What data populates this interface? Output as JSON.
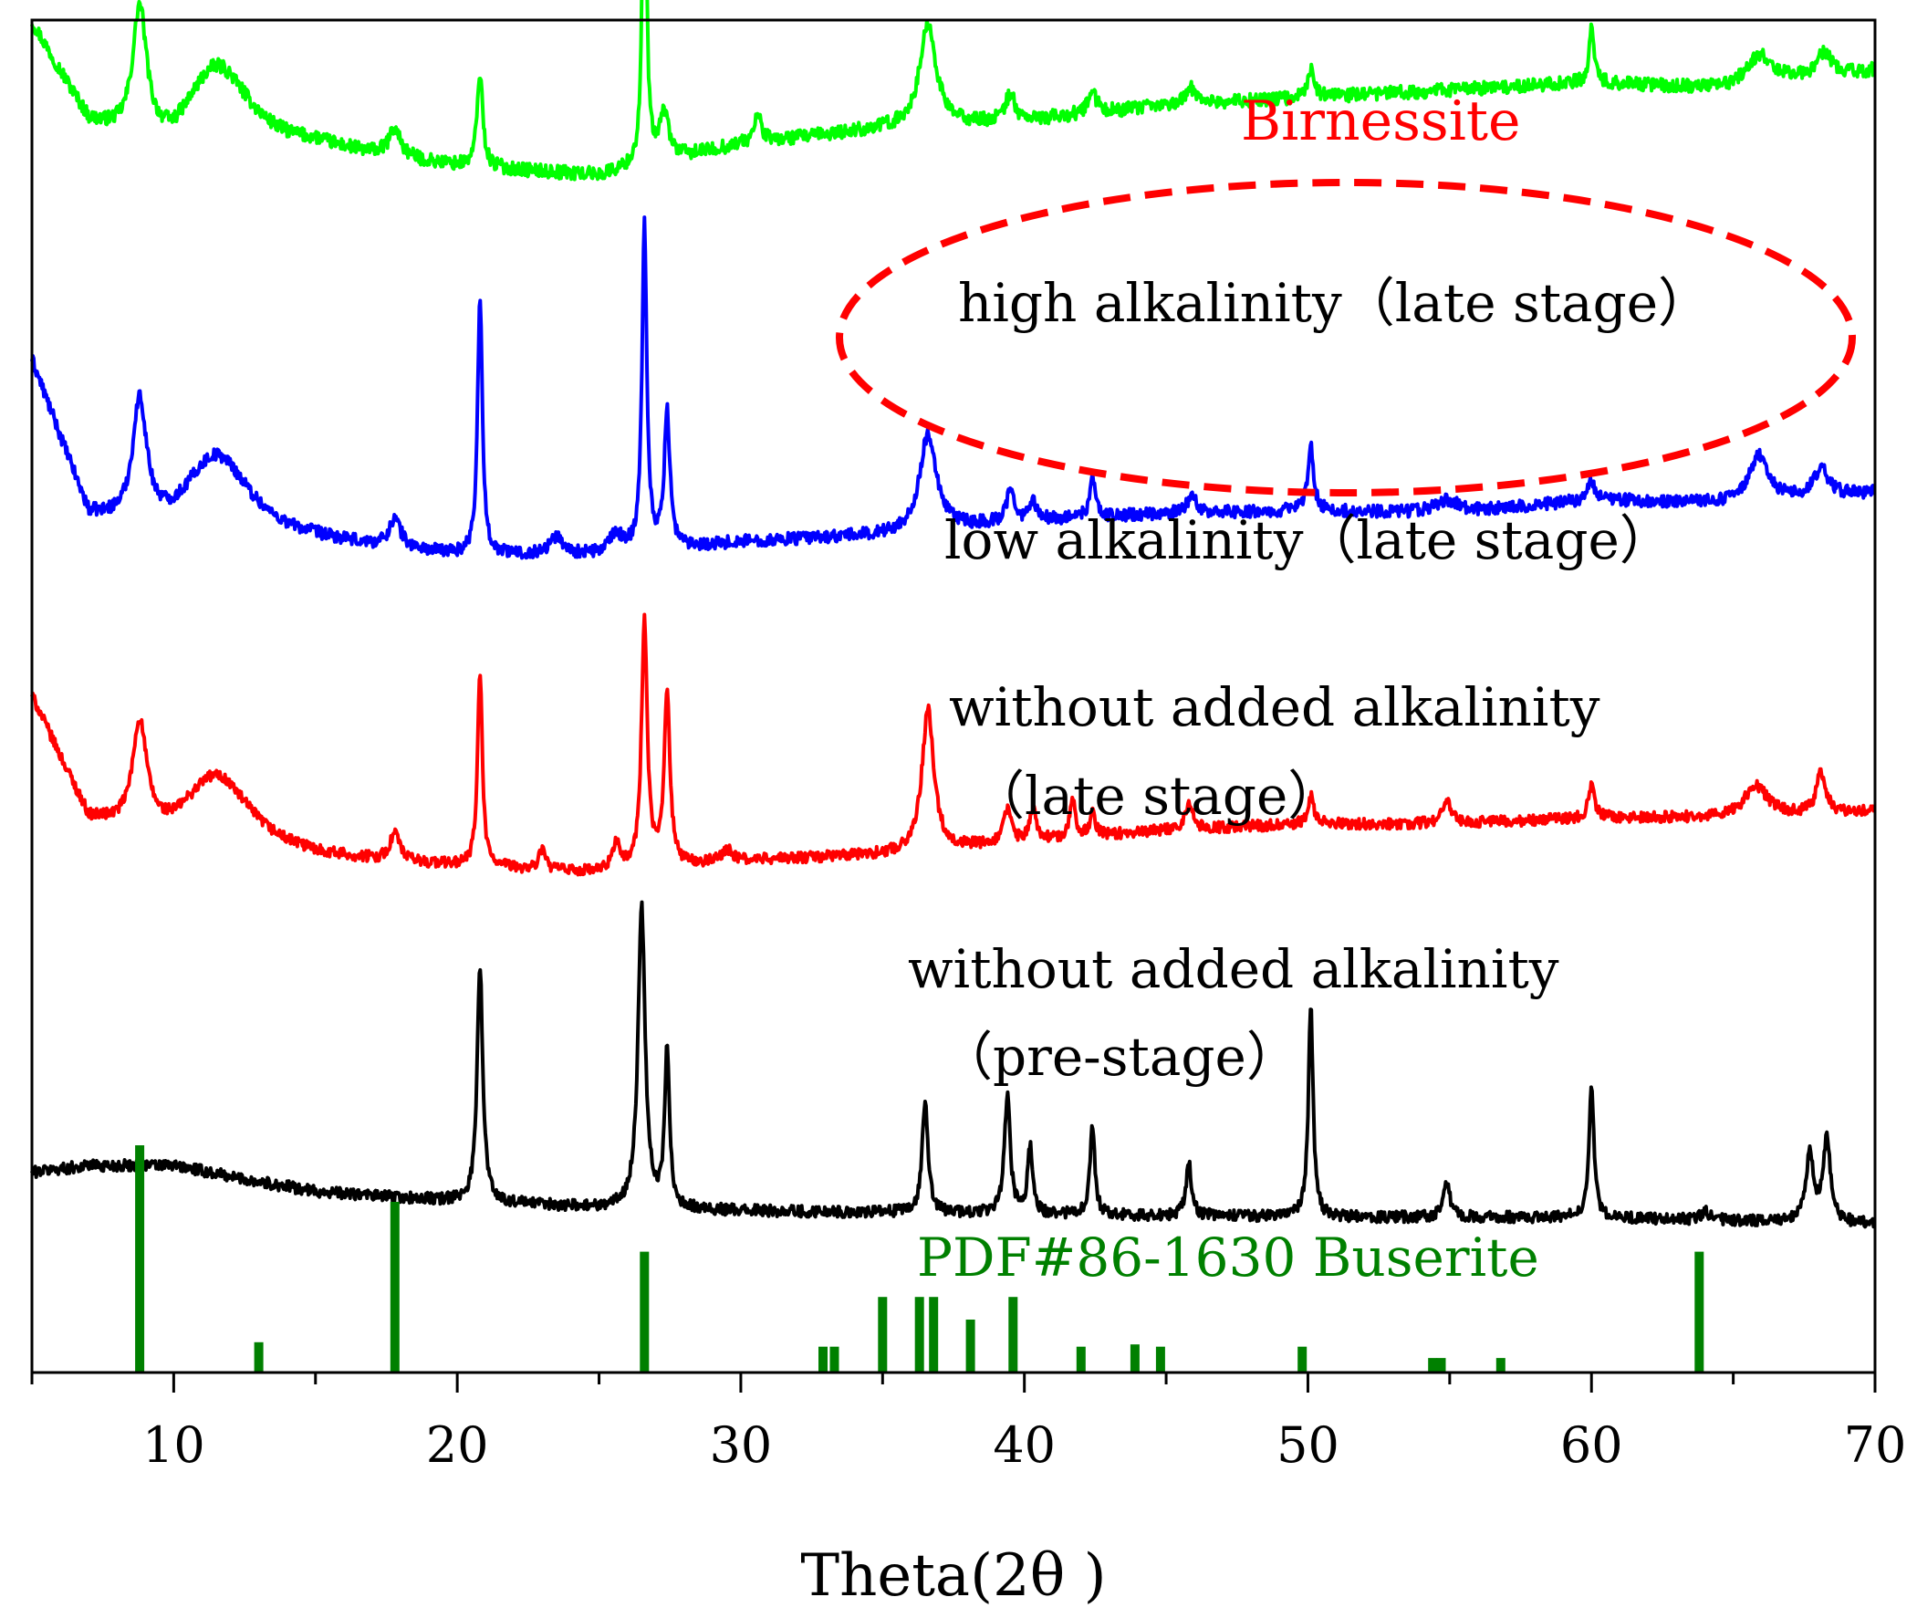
{
  "chart_data": {
    "type": "line",
    "title": "",
    "xlabel": "Theta(2θ )",
    "ylabel": "",
    "xlim": [
      5,
      70
    ],
    "x_ticks": [
      10,
      20,
      30,
      40,
      50,
      60,
      70
    ],
    "grid": false,
    "y_scale": "arbitrary intensity, stacked offsets",
    "series": [
      {
        "name": "high alkalinity（late stage）",
        "color": "#00ff00",
        "baseline": [
          [
            5,
            1.0
          ],
          [
            7,
            0.74
          ],
          [
            10,
            0.62
          ],
          [
            15,
            0.68
          ],
          [
            20,
            0.64
          ],
          [
            25,
            0.62
          ],
          [
            30,
            0.7
          ],
          [
            35,
            0.74
          ],
          [
            40,
            0.76
          ],
          [
            45,
            0.8
          ],
          [
            50,
            0.82
          ],
          [
            55,
            0.84
          ],
          [
            60,
            0.86
          ],
          [
            65,
            0.84
          ],
          [
            70,
            0.89
          ]
        ],
        "peaks": [
          [
            8.8,
            0.33,
            0.3
          ],
          [
            11.5,
            0.26,
            1.5
          ],
          [
            17.8,
            0.07,
            0.25
          ],
          [
            20.8,
            0.24,
            0.12
          ],
          [
            26.6,
            1.0,
            0.08
          ],
          [
            27.3,
            0.12,
            0.2
          ],
          [
            30.6,
            0.07,
            0.15
          ],
          [
            36.6,
            0.26,
            0.35
          ],
          [
            39.5,
            0.07,
            0.2
          ],
          [
            42.4,
            0.05,
            0.2
          ],
          [
            45.9,
            0.04,
            0.25
          ],
          [
            50.1,
            0.07,
            0.15
          ],
          [
            60.0,
            0.14,
            0.1
          ],
          [
            65.9,
            0.08,
            0.6
          ],
          [
            68.2,
            0.06,
            0.3
          ]
        ]
      },
      {
        "name": "low alkalinity（late stage）",
        "color": "#0000ff",
        "baseline": [
          [
            5,
            0.86
          ],
          [
            7,
            0.42
          ],
          [
            10,
            0.34
          ],
          [
            15,
            0.35
          ],
          [
            20,
            0.32
          ],
          [
            25,
            0.32
          ],
          [
            30,
            0.36
          ],
          [
            35,
            0.38
          ],
          [
            40,
            0.42
          ],
          [
            45,
            0.44
          ],
          [
            50,
            0.45
          ],
          [
            55,
            0.44
          ],
          [
            60,
            0.48
          ],
          [
            65,
            0.47
          ],
          [
            70,
            0.5
          ]
        ],
        "peaks": [
          [
            8.8,
            0.34,
            0.3
          ],
          [
            11.5,
            0.26,
            1.5
          ],
          [
            17.8,
            0.08,
            0.25
          ],
          [
            20.8,
            0.73,
            0.1
          ],
          [
            23.5,
            0.05,
            0.3
          ],
          [
            25.6,
            0.05,
            0.3
          ],
          [
            26.6,
            0.92,
            0.1
          ],
          [
            27.4,
            0.38,
            0.12
          ],
          [
            36.6,
            0.27,
            0.35
          ],
          [
            39.5,
            0.09,
            0.15
          ],
          [
            40.3,
            0.05,
            0.15
          ],
          [
            42.4,
            0.11,
            0.12
          ],
          [
            45.9,
            0.05,
            0.2
          ],
          [
            50.1,
            0.18,
            0.12
          ],
          [
            54.9,
            0.04,
            0.5
          ],
          [
            60.0,
            0.06,
            0.12
          ],
          [
            65.9,
            0.13,
            0.4
          ],
          [
            68.1,
            0.08,
            0.3
          ]
        ]
      },
      {
        "name": "without added alkalinity（late stage）",
        "color": "#ff0000",
        "baseline": [
          [
            5,
            0.7
          ],
          [
            7,
            0.3
          ],
          [
            10,
            0.2
          ],
          [
            15,
            0.18
          ],
          [
            20,
            0.16
          ],
          [
            25,
            0.14
          ],
          [
            30,
            0.18
          ],
          [
            35,
            0.2
          ],
          [
            40,
            0.24
          ],
          [
            45,
            0.28
          ],
          [
            50,
            0.3
          ],
          [
            55,
            0.3
          ],
          [
            60,
            0.32
          ],
          [
            65,
            0.32
          ],
          [
            70,
            0.34
          ]
        ],
        "peaks": [
          [
            8.8,
            0.34,
            0.3
          ],
          [
            11.5,
            0.26,
            1.5
          ],
          [
            17.8,
            0.09,
            0.2
          ],
          [
            20.8,
            0.63,
            0.1
          ],
          [
            23.0,
            0.07,
            0.12
          ],
          [
            25.6,
            0.09,
            0.15
          ],
          [
            26.6,
            0.8,
            0.12
          ],
          [
            27.4,
            0.57,
            0.12
          ],
          [
            29.5,
            0.04,
            0.2
          ],
          [
            36.6,
            0.46,
            0.25
          ],
          [
            39.4,
            0.11,
            0.15
          ],
          [
            40.3,
            0.1,
            0.15
          ],
          [
            41.7,
            0.12,
            0.12
          ],
          [
            42.4,
            0.07,
            0.12
          ],
          [
            45.8,
            0.09,
            0.15
          ],
          [
            50.1,
            0.09,
            0.12
          ],
          [
            54.9,
            0.07,
            0.2
          ],
          [
            60.0,
            0.11,
            0.12
          ],
          [
            65.8,
            0.1,
            0.5
          ],
          [
            68.1,
            0.13,
            0.2
          ]
        ]
      },
      {
        "name": "without added alkalinity（pre-stage）",
        "color": "#000000",
        "baseline": [
          [
            5,
            0.14
          ],
          [
            7,
            0.16
          ],
          [
            10,
            0.16
          ],
          [
            13,
            0.11
          ],
          [
            15,
            0.08
          ],
          [
            18,
            0.06
          ],
          [
            20,
            0.05
          ],
          [
            25,
            0.03
          ],
          [
            30,
            0.02
          ],
          [
            40,
            0.01
          ],
          [
            50,
            0.0
          ],
          [
            60,
            0.0
          ],
          [
            70,
            -0.02
          ]
        ],
        "peaks": [
          [
            20.8,
            0.73,
            0.12
          ],
          [
            26.5,
            0.93,
            0.15
          ],
          [
            27.4,
            0.49,
            0.1
          ],
          [
            36.5,
            0.35,
            0.12
          ],
          [
            39.4,
            0.37,
            0.12
          ],
          [
            40.2,
            0.21,
            0.1
          ],
          [
            42.4,
            0.28,
            0.1
          ],
          [
            45.8,
            0.16,
            0.12
          ],
          [
            50.1,
            0.65,
            0.1
          ],
          [
            54.9,
            0.1,
            0.15
          ],
          [
            60.0,
            0.42,
            0.1
          ],
          [
            64.0,
            0.03,
            0.15
          ],
          [
            67.7,
            0.22,
            0.15
          ],
          [
            68.3,
            0.26,
            0.15
          ]
        ]
      }
    ],
    "reference_pattern": {
      "name": "PDF#86-1630 Buserite",
      "color": "#008000",
      "lines": [
        [
          8.8,
          1.0
        ],
        [
          13.0,
          0.13
        ],
        [
          17.8,
          0.75
        ],
        [
          26.6,
          0.53
        ],
        [
          32.9,
          0.11
        ],
        [
          33.3,
          0.11
        ],
        [
          35.0,
          0.33
        ],
        [
          36.3,
          0.33
        ],
        [
          36.8,
          0.33
        ],
        [
          38.1,
          0.23
        ],
        [
          39.6,
          0.33
        ],
        [
          42.0,
          0.11
        ],
        [
          43.9,
          0.12
        ],
        [
          44.8,
          0.11
        ],
        [
          49.8,
          0.11
        ],
        [
          54.4,
          0.06
        ],
        [
          54.7,
          0.06
        ],
        [
          56.8,
          0.06
        ],
        [
          63.8,
          0.53
        ]
      ]
    },
    "annotations": [
      {
        "text": "Birnessite",
        "color": "#ff0000"
      },
      {
        "text": "high alkalinity（late stage）",
        "color": "#000000"
      },
      {
        "text": "low alkalinity（late stage）",
        "color": "#000000"
      },
      {
        "text": "without added alkalinity",
        "color": "#000000"
      },
      {
        "text": "（late stage）",
        "color": "#000000"
      },
      {
        "text": "without added alkalinity",
        "color": "#000000"
      },
      {
        "text": "（pre-stage）",
        "color": "#000000"
      },
      {
        "text": "PDF#86-1630 Buserite",
        "color": "#008000"
      }
    ]
  }
}
